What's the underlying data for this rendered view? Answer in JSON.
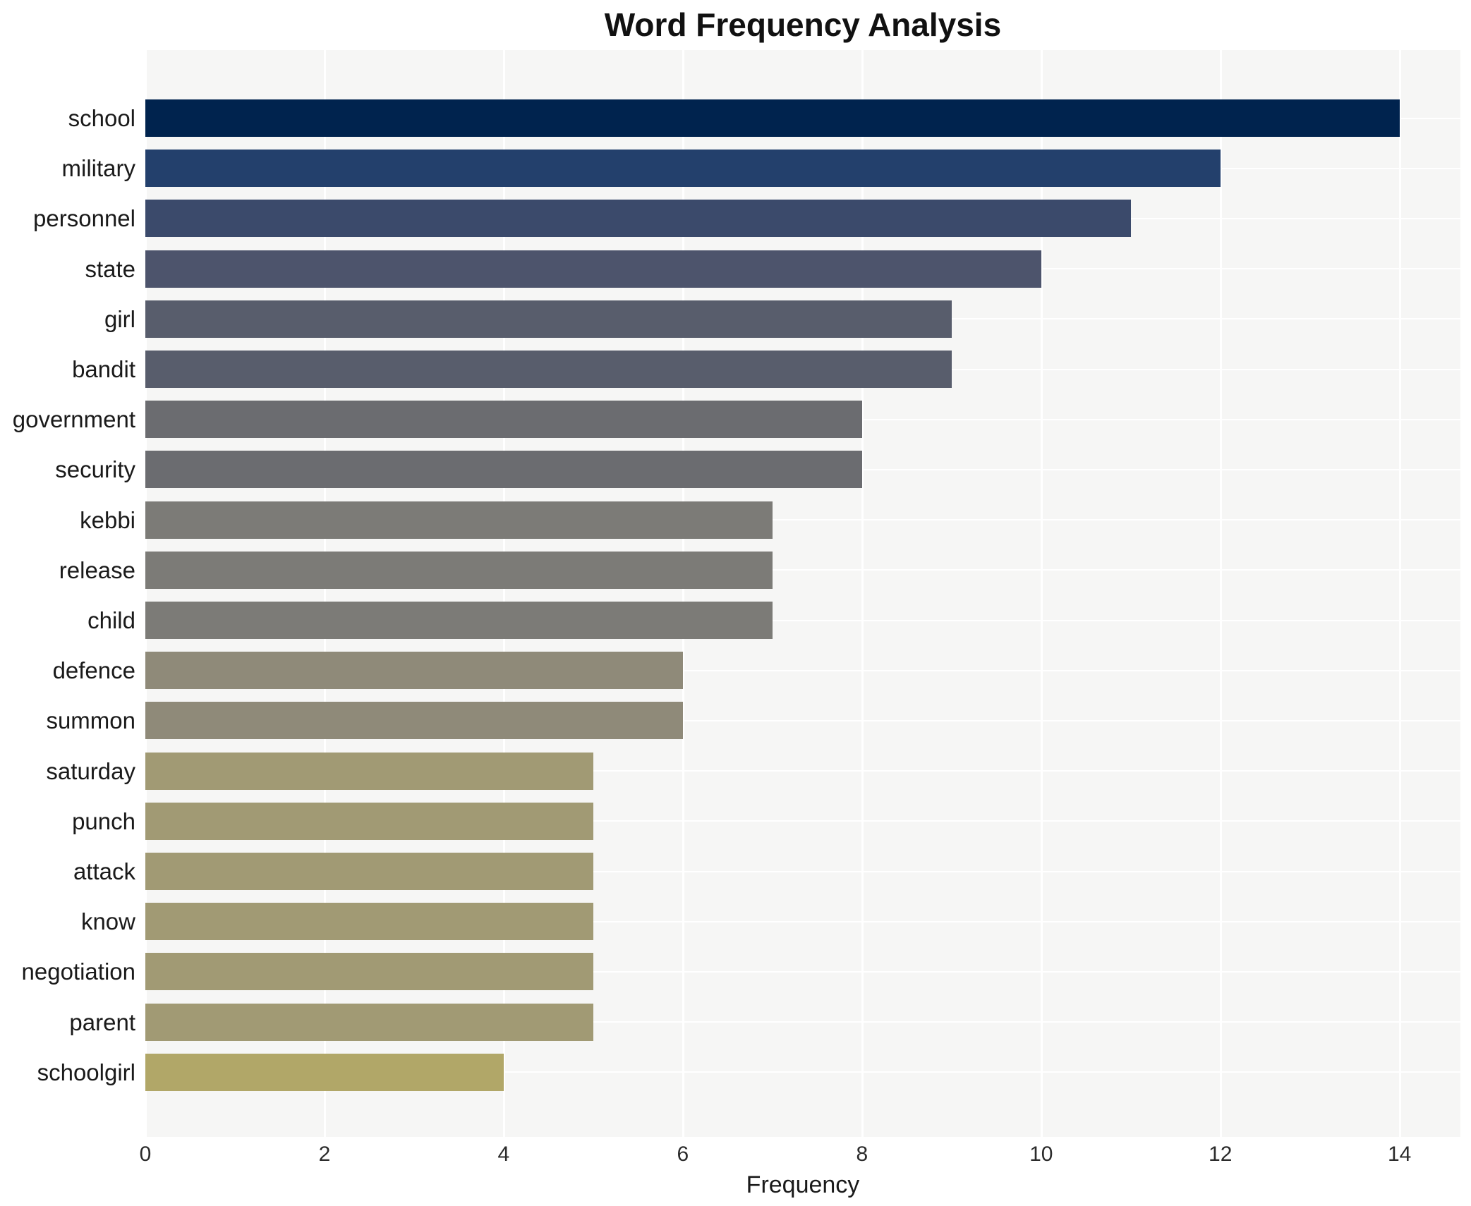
{
  "title": "Word Frequency Analysis",
  "chart_data": {
    "type": "bar",
    "orientation": "horizontal",
    "title": "Word Frequency Analysis",
    "xlabel": "Frequency",
    "ylabel": "",
    "categories": [
      "school",
      "military",
      "personnel",
      "state",
      "girl",
      "bandit",
      "government",
      "security",
      "kebbi",
      "release",
      "child",
      "defence",
      "summon",
      "saturday",
      "punch",
      "attack",
      "know",
      "negotiation",
      "parent",
      "schoolgirl"
    ],
    "values": [
      14,
      12,
      11,
      10,
      9,
      9,
      8,
      8,
      7,
      7,
      7,
      6,
      6,
      5,
      5,
      5,
      5,
      5,
      5,
      4
    ],
    "bar_colors": [
      "#00234e",
      "#23406c",
      "#3b4a6b",
      "#4d546c",
      "#585d6c",
      "#585d6c",
      "#6b6c70",
      "#6b6c70",
      "#7c7b77",
      "#7c7b77",
      "#7c7b77",
      "#8f8a79",
      "#8f8a79",
      "#a19a74",
      "#a19a74",
      "#a19a74",
      "#a19a74",
      "#a19a74",
      "#a19a74",
      "#b1a768"
    ],
    "xticks": [
      0,
      2,
      4,
      6,
      8,
      10,
      12,
      14
    ],
    "xlim": [
      0,
      14.68
    ],
    "grid": true,
    "gridline_color": "#ffffff",
    "plot_background": "#f6f6f5",
    "figure_background": "#ffffff",
    "legend": false
  }
}
